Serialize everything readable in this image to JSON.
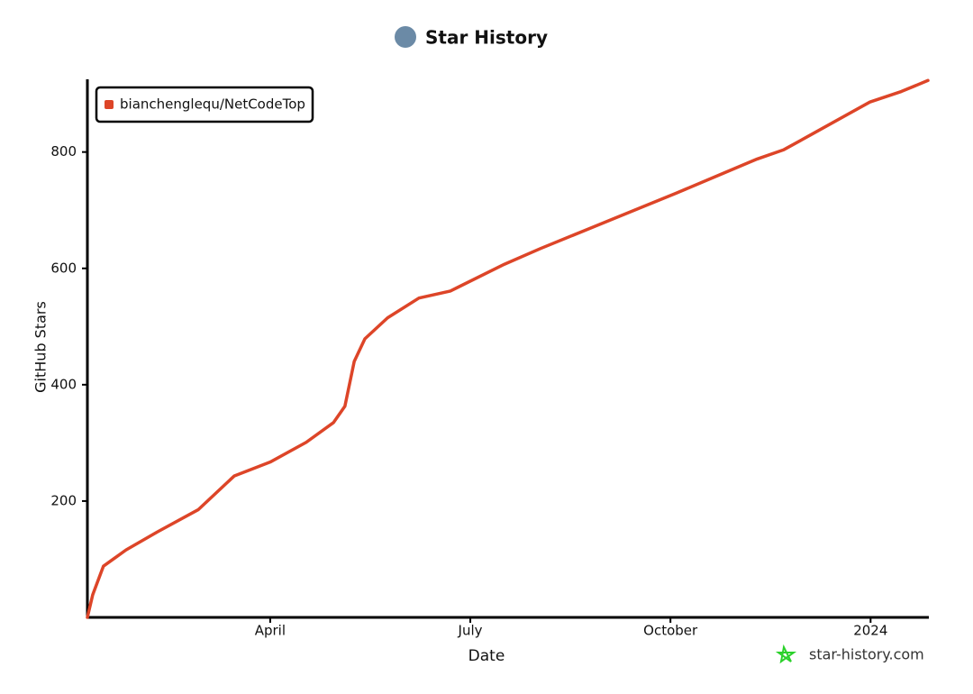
{
  "chart_data": {
    "type": "line",
    "title": "Star History",
    "x_label": "Date",
    "y_label": "GitHub Stars",
    "watermark": "star-history.com",
    "x": [
      1.26,
      1.34,
      1.5,
      1.84,
      2.31,
      2.92,
      3.46,
      4.0,
      4.54,
      4.95,
      5.12,
      5.26,
      5.42,
      5.76,
      6.23,
      6.7,
      7.51,
      8.05,
      9.14,
      10.08,
      10.76,
      11.3,
      11.7,
      12.11,
      12.99,
      13.46,
      13.86
    ],
    "series": [
      {
        "name": "bianchenglequ/NetCodeTop",
        "color": "#dd4528",
        "values": [
          0,
          39,
          88,
          116,
          147,
          185,
          243,
          267,
          301,
          335,
          363,
          440,
          479,
          515,
          549,
          561,
          607,
          634,
          685,
          729,
          762,
          788,
          804,
          830,
          886,
          904,
          923
        ]
      }
    ],
    "xlim": [
      1.26,
      13.86
    ],
    "xticks": [
      {
        "value": 4,
        "label": "April"
      },
      {
        "value": 7,
        "label": "July"
      },
      {
        "value": 10,
        "label": "October"
      },
      {
        "value": 13,
        "label": "2024"
      }
    ],
    "ylim": [
      0,
      925
    ],
    "yticks": [
      200,
      400,
      600,
      800
    ],
    "legend": "top-left"
  }
}
